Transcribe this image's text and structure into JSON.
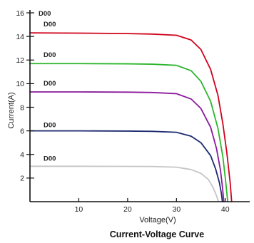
{
  "chart_data": {
    "type": "line",
    "title": "Current-Voltage Curve",
    "xlabel": "Voltage(V)",
    "ylabel": "Current(A)",
    "xlim": [
      0,
      45
    ],
    "ylim": [
      0,
      16
    ],
    "xticks": [
      10,
      20,
      30,
      40
    ],
    "yticks": [
      2,
      4,
      6,
      8,
      10,
      12,
      14,
      16
    ],
    "grid": false,
    "annotations": [
      "D00",
      "D00",
      "D00",
      "D00",
      "D00",
      "D00"
    ],
    "series": [
      {
        "color": "#d0021b",
        "isc": 14.3,
        "voc": 41.3,
        "x": [
          0,
          10,
          20,
          25,
          30,
          33,
          35,
          37,
          38.5,
          39.5,
          40.3,
          41.0,
          41.3
        ],
        "y": [
          14.3,
          14.28,
          14.24,
          14.2,
          14.1,
          13.7,
          12.9,
          11.2,
          9.0,
          6.6,
          4.2,
          1.6,
          0
        ]
      },
      {
        "color": "#2db52d",
        "isc": 11.7,
        "voc": 40.5,
        "x": [
          0,
          10,
          20,
          25,
          30,
          33,
          35,
          37,
          38.5,
          39.5,
          40.0,
          40.5
        ],
        "y": [
          11.7,
          11.7,
          11.68,
          11.65,
          11.55,
          11.1,
          10.2,
          8.5,
          6.2,
          3.8,
          2.0,
          0
        ]
      },
      {
        "color": "#8b1a9c",
        "isc": 9.3,
        "voc": 39.7,
        "x": [
          0,
          10,
          20,
          25,
          30,
          33,
          35,
          37,
          38.2,
          39.0,
          39.4,
          39.7
        ],
        "y": [
          9.3,
          9.3,
          9.28,
          9.25,
          9.15,
          8.7,
          7.9,
          6.3,
          4.5,
          2.7,
          1.3,
          0
        ]
      },
      {
        "color": "#1c2a6e",
        "isc": 6.0,
        "voc": 39.4,
        "x": [
          0,
          10,
          20,
          25,
          30,
          33,
          35,
          37,
          38.0,
          38.8,
          39.2,
          39.4
        ],
        "y": [
          6.0,
          6.0,
          5.98,
          5.96,
          5.88,
          5.55,
          5.0,
          3.9,
          2.8,
          1.6,
          0.7,
          0
        ]
      },
      {
        "color": "#c6c6c6",
        "isc": 3.0,
        "voc": 38.6,
        "x": [
          0,
          10,
          20,
          25,
          30,
          33,
          35,
          36.5,
          37.5,
          38.2,
          38.6
        ],
        "y": [
          3.0,
          3.0,
          2.99,
          2.98,
          2.92,
          2.72,
          2.4,
          1.9,
          1.2,
          0.5,
          0
        ]
      }
    ]
  }
}
